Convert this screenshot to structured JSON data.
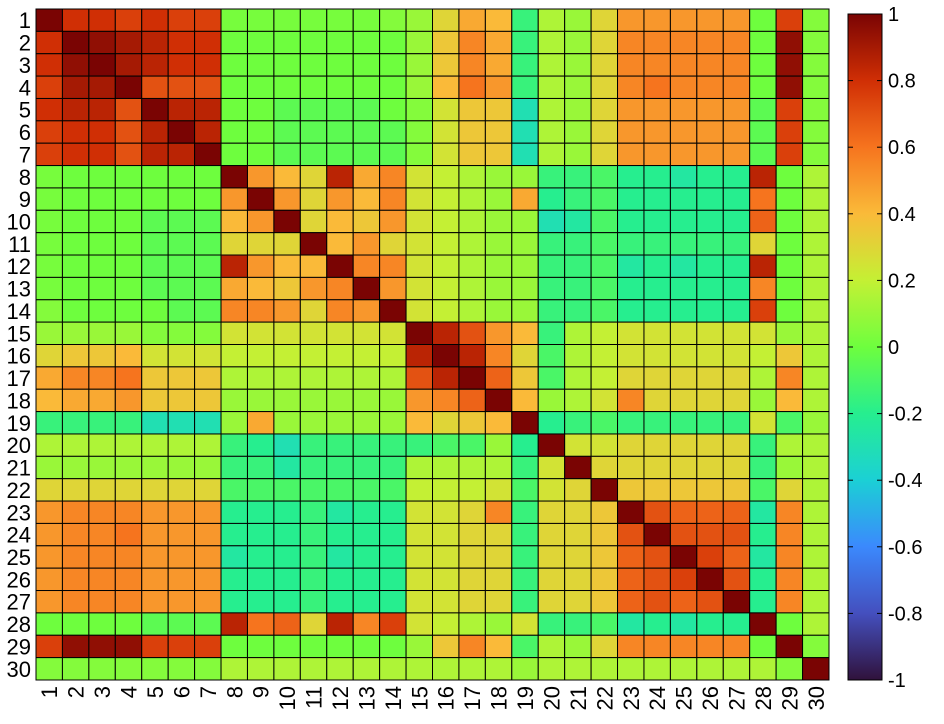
{
  "chart_data": {
    "type": "heatmap",
    "title": "",
    "xlabel": "",
    "ylabel": "",
    "x_labels": [
      "1",
      "2",
      "3",
      "4",
      "5",
      "6",
      "7",
      "8",
      "9",
      "10",
      "11",
      "12",
      "13",
      "14",
      "15",
      "16",
      "17",
      "18",
      "19",
      "20",
      "21",
      "22",
      "23",
      "24",
      "25",
      "26",
      "27",
      "28",
      "29",
      "30"
    ],
    "y_labels": [
      "1",
      "2",
      "3",
      "4",
      "5",
      "6",
      "7",
      "8",
      "9",
      "10",
      "11",
      "12",
      "13",
      "14",
      "15",
      "16",
      "17",
      "18",
      "19",
      "20",
      "21",
      "22",
      "23",
      "24",
      "25",
      "26",
      "27",
      "28",
      "29",
      "30"
    ],
    "value_range": [
      -1,
      1
    ],
    "colormap": "turbo",
    "colorbar": {
      "ticks": [
        1,
        0.8,
        0.6,
        0.4,
        0.2,
        0,
        -0.2,
        -0.4,
        -0.6,
        -0.8,
        -1
      ],
      "tick_labels": [
        "1",
        "0.8",
        "0.6",
        "0.4",
        "0.2",
        "0",
        "-0.2",
        "-0.4",
        "-0.6",
        "-0.8",
        "-1"
      ]
    },
    "values": [
      [
        1.0,
        0.8,
        0.8,
        0.75,
        0.8,
        0.75,
        0.75,
        0.02,
        0.02,
        0.02,
        0.02,
        0.02,
        0.02,
        0.05,
        0.1,
        0.3,
        0.45,
        0.4,
        -0.15,
        0.15,
        0.1,
        0.3,
        0.5,
        0.5,
        0.5,
        0.5,
        0.5,
        0.0,
        0.75,
        0.05
      ],
      [
        0.8,
        1.0,
        0.95,
        0.9,
        0.85,
        0.8,
        0.8,
        0.0,
        0.0,
        0.0,
        0.0,
        0.0,
        0.0,
        0.0,
        0.1,
        0.35,
        0.55,
        0.45,
        -0.15,
        0.15,
        0.1,
        0.3,
        0.55,
        0.55,
        0.55,
        0.55,
        0.55,
        0.0,
        0.95,
        0.05
      ],
      [
        0.8,
        0.95,
        1.0,
        0.9,
        0.85,
        0.8,
        0.8,
        0.0,
        0.0,
        0.0,
        0.0,
        0.0,
        0.0,
        0.0,
        0.1,
        0.35,
        0.55,
        0.45,
        -0.15,
        0.15,
        0.1,
        0.3,
        0.55,
        0.55,
        0.55,
        0.55,
        0.55,
        0.0,
        0.95,
        0.05
      ],
      [
        0.75,
        0.9,
        0.9,
        1.0,
        0.7,
        0.7,
        0.7,
        0.0,
        0.0,
        0.0,
        0.0,
        0.0,
        0.0,
        0.0,
        0.1,
        0.4,
        0.6,
        0.5,
        -0.15,
        0.15,
        0.1,
        0.3,
        0.55,
        0.6,
        0.55,
        0.55,
        0.55,
        0.0,
        0.95,
        0.05
      ],
      [
        0.8,
        0.85,
        0.85,
        0.7,
        1.0,
        0.85,
        0.85,
        0.0,
        0.0,
        -0.05,
        -0.05,
        -0.05,
        -0.05,
        0.0,
        0.05,
        0.25,
        0.35,
        0.35,
        -0.3,
        0.15,
        0.1,
        0.3,
        0.5,
        0.5,
        0.5,
        0.5,
        0.5,
        -0.05,
        0.75,
        0.05
      ],
      [
        0.75,
        0.8,
        0.8,
        0.7,
        0.85,
        1.0,
        0.85,
        0.0,
        0.0,
        -0.05,
        -0.05,
        -0.05,
        -0.05,
        -0.05,
        0.05,
        0.25,
        0.35,
        0.35,
        -0.3,
        0.15,
        0.1,
        0.3,
        0.5,
        0.5,
        0.5,
        0.5,
        0.5,
        -0.05,
        0.75,
        0.05
      ],
      [
        0.75,
        0.8,
        0.8,
        0.7,
        0.85,
        0.85,
        1.0,
        0.0,
        0.0,
        -0.05,
        -0.05,
        -0.05,
        -0.05,
        -0.05,
        0.05,
        0.25,
        0.35,
        0.35,
        -0.3,
        0.15,
        0.1,
        0.3,
        0.5,
        0.5,
        0.5,
        0.5,
        0.5,
        -0.05,
        0.75,
        0.05
      ],
      [
        0.02,
        0.0,
        0.0,
        0.0,
        0.0,
        0.0,
        0.0,
        1.0,
        0.5,
        0.4,
        0.3,
        0.85,
        0.45,
        0.55,
        0.25,
        0.2,
        0.15,
        0.1,
        0.1,
        -0.15,
        -0.15,
        -0.1,
        -0.2,
        -0.2,
        -0.25,
        -0.2,
        -0.2,
        0.85,
        0.0,
        0.15
      ],
      [
        0.02,
        0.0,
        0.0,
        0.0,
        0.0,
        0.0,
        0.0,
        0.5,
        1.0,
        0.5,
        0.3,
        0.5,
        0.4,
        0.55,
        0.25,
        0.2,
        0.15,
        0.1,
        0.45,
        -0.2,
        -0.15,
        -0.1,
        -0.2,
        -0.2,
        -0.2,
        -0.2,
        -0.2,
        0.6,
        0.0,
        0.15
      ],
      [
        0.02,
        0.0,
        0.0,
        0.0,
        -0.05,
        -0.05,
        -0.05,
        0.4,
        0.5,
        1.0,
        0.3,
        0.4,
        0.35,
        0.5,
        0.25,
        0.2,
        0.15,
        0.1,
        0.1,
        -0.3,
        -0.25,
        -0.1,
        -0.2,
        -0.2,
        -0.2,
        -0.2,
        -0.2,
        0.65,
        0.0,
        0.15
      ],
      [
        0.02,
        0.0,
        0.0,
        0.0,
        -0.05,
        -0.05,
        -0.05,
        0.3,
        0.3,
        0.3,
        1.0,
        0.4,
        0.5,
        0.3,
        0.25,
        0.2,
        0.15,
        0.1,
        0.1,
        -0.15,
        -0.15,
        -0.1,
        -0.15,
        -0.15,
        -0.15,
        -0.15,
        -0.15,
        0.3,
        0.0,
        0.15
      ],
      [
        0.02,
        0.0,
        0.0,
        0.0,
        -0.05,
        -0.05,
        -0.05,
        0.85,
        0.5,
        0.4,
        0.4,
        1.0,
        0.55,
        0.55,
        0.25,
        0.2,
        0.15,
        0.1,
        0.1,
        -0.15,
        -0.15,
        -0.1,
        -0.25,
        -0.2,
        -0.25,
        -0.2,
        -0.2,
        0.85,
        0.0,
        0.15
      ],
      [
        0.02,
        0.0,
        0.0,
        0.0,
        -0.05,
        -0.05,
        -0.05,
        0.45,
        0.4,
        0.35,
        0.5,
        0.55,
        1.0,
        0.5,
        0.25,
        0.2,
        0.15,
        0.1,
        0.1,
        -0.15,
        -0.15,
        -0.1,
        -0.2,
        -0.2,
        -0.2,
        -0.2,
        -0.2,
        0.55,
        0.0,
        0.15
      ],
      [
        0.05,
        0.0,
        0.0,
        0.0,
        0.0,
        -0.05,
        -0.05,
        0.55,
        0.55,
        0.5,
        0.3,
        0.55,
        0.5,
        1.0,
        0.25,
        0.2,
        0.15,
        0.1,
        0.1,
        -0.15,
        -0.15,
        -0.1,
        -0.2,
        -0.2,
        -0.2,
        -0.2,
        -0.2,
        0.75,
        0.0,
        0.15
      ],
      [
        0.1,
        0.1,
        0.1,
        0.1,
        0.05,
        0.05,
        0.05,
        0.25,
        0.25,
        0.25,
        0.25,
        0.25,
        0.25,
        0.25,
        1.0,
        0.85,
        0.7,
        0.5,
        0.4,
        -0.15,
        0.15,
        0.2,
        0.25,
        0.25,
        0.25,
        0.25,
        0.25,
        0.25,
        0.1,
        0.15
      ],
      [
        0.3,
        0.35,
        0.35,
        0.4,
        0.25,
        0.25,
        0.25,
        0.2,
        0.2,
        0.2,
        0.2,
        0.2,
        0.2,
        0.2,
        0.85,
        1.0,
        0.85,
        0.55,
        0.3,
        -0.1,
        0.15,
        0.2,
        0.25,
        0.25,
        0.25,
        0.25,
        0.25,
        0.2,
        0.35,
        0.15
      ],
      [
        0.45,
        0.55,
        0.55,
        0.6,
        0.35,
        0.35,
        0.35,
        0.15,
        0.15,
        0.15,
        0.15,
        0.15,
        0.15,
        0.15,
        0.7,
        0.85,
        1.0,
        0.65,
        0.35,
        -0.1,
        0.15,
        0.2,
        0.3,
        0.3,
        0.3,
        0.3,
        0.3,
        0.15,
        0.55,
        0.15
      ],
      [
        0.4,
        0.45,
        0.45,
        0.5,
        0.35,
        0.35,
        0.35,
        0.1,
        0.1,
        0.1,
        0.1,
        0.1,
        0.1,
        0.1,
        0.5,
        0.55,
        0.65,
        1.0,
        0.4,
        0.1,
        0.15,
        0.25,
        0.55,
        0.3,
        0.3,
        0.3,
        0.3,
        0.1,
        0.4,
        0.15
      ],
      [
        -0.15,
        -0.15,
        -0.15,
        -0.15,
        -0.3,
        -0.3,
        -0.3,
        0.1,
        0.45,
        0.1,
        0.1,
        0.1,
        0.1,
        0.1,
        0.4,
        0.3,
        0.35,
        0.4,
        1.0,
        -0.2,
        -0.15,
        -0.1,
        -0.15,
        -0.15,
        -0.15,
        -0.15,
        -0.15,
        0.25,
        -0.1,
        0.1
      ],
      [
        0.15,
        0.15,
        0.15,
        0.15,
        0.15,
        0.15,
        0.15,
        -0.15,
        -0.2,
        -0.3,
        -0.15,
        -0.15,
        -0.15,
        -0.15,
        -0.15,
        -0.1,
        -0.1,
        0.1,
        -0.2,
        1.0,
        0.25,
        0.25,
        0.3,
        0.3,
        0.3,
        0.3,
        0.3,
        -0.15,
        0.15,
        0.15
      ],
      [
        0.1,
        0.1,
        0.1,
        0.1,
        0.1,
        0.1,
        0.1,
        -0.15,
        -0.15,
        -0.25,
        -0.15,
        -0.15,
        -0.15,
        -0.15,
        0.15,
        0.15,
        0.15,
        0.15,
        -0.15,
        0.25,
        1.0,
        0.3,
        0.3,
        0.3,
        0.3,
        0.3,
        0.3,
        -0.15,
        0.1,
        0.15
      ],
      [
        0.3,
        0.3,
        0.3,
        0.3,
        0.3,
        0.3,
        0.3,
        -0.1,
        -0.1,
        -0.1,
        -0.1,
        -0.1,
        -0.1,
        -0.1,
        0.2,
        0.2,
        0.2,
        0.25,
        -0.1,
        0.25,
        0.3,
        1.0,
        0.35,
        0.35,
        0.35,
        0.35,
        0.35,
        -0.1,
        0.3,
        0.15
      ],
      [
        0.5,
        0.55,
        0.55,
        0.55,
        0.5,
        0.5,
        0.5,
        -0.2,
        -0.2,
        -0.2,
        -0.15,
        -0.25,
        -0.2,
        -0.2,
        0.25,
        0.25,
        0.3,
        0.55,
        -0.15,
        0.3,
        0.3,
        0.35,
        1.0,
        0.7,
        0.65,
        0.65,
        0.65,
        -0.25,
        0.55,
        0.15
      ],
      [
        0.5,
        0.55,
        0.55,
        0.6,
        0.5,
        0.5,
        0.5,
        -0.2,
        -0.2,
        -0.2,
        -0.15,
        -0.2,
        -0.2,
        -0.2,
        0.25,
        0.25,
        0.3,
        0.3,
        -0.15,
        0.3,
        0.3,
        0.35,
        0.7,
        1.0,
        0.7,
        0.7,
        0.7,
        -0.2,
        0.55,
        0.15
      ],
      [
        0.5,
        0.55,
        0.55,
        0.55,
        0.5,
        0.5,
        0.5,
        -0.25,
        -0.2,
        -0.2,
        -0.15,
        -0.25,
        -0.2,
        -0.2,
        0.25,
        0.25,
        0.3,
        0.3,
        -0.15,
        0.3,
        0.3,
        0.35,
        0.65,
        0.7,
        1.0,
        0.75,
        0.65,
        -0.25,
        0.55,
        0.15
      ],
      [
        0.5,
        0.55,
        0.55,
        0.55,
        0.5,
        0.5,
        0.5,
        -0.2,
        -0.2,
        -0.2,
        -0.15,
        -0.2,
        -0.2,
        -0.2,
        0.25,
        0.25,
        0.3,
        0.3,
        -0.15,
        0.3,
        0.3,
        0.35,
        0.65,
        0.7,
        0.75,
        1.0,
        0.7,
        -0.2,
        0.55,
        0.15
      ],
      [
        0.5,
        0.55,
        0.55,
        0.55,
        0.5,
        0.5,
        0.5,
        -0.2,
        -0.2,
        -0.2,
        -0.15,
        -0.2,
        -0.2,
        -0.2,
        0.25,
        0.25,
        0.3,
        0.3,
        -0.15,
        0.3,
        0.3,
        0.35,
        0.65,
        0.7,
        0.65,
        0.7,
        1.0,
        -0.2,
        0.55,
        0.15
      ],
      [
        0.0,
        0.0,
        0.0,
        0.0,
        -0.05,
        -0.05,
        -0.05,
        0.85,
        0.6,
        0.65,
        0.3,
        0.85,
        0.55,
        0.75,
        0.25,
        0.2,
        0.15,
        0.1,
        0.25,
        -0.15,
        -0.15,
        -0.1,
        -0.25,
        -0.2,
        -0.25,
        -0.2,
        -0.2,
        1.0,
        0.0,
        0.15
      ],
      [
        0.75,
        0.95,
        0.95,
        0.95,
        0.75,
        0.75,
        0.75,
        0.0,
        0.0,
        0.0,
        0.0,
        0.0,
        0.0,
        0.0,
        0.1,
        0.35,
        0.55,
        0.4,
        -0.1,
        0.15,
        0.1,
        0.3,
        0.55,
        0.55,
        0.55,
        0.55,
        0.55,
        0.0,
        1.0,
        0.05
      ],
      [
        0.05,
        0.05,
        0.05,
        0.05,
        0.05,
        0.05,
        0.05,
        0.15,
        0.15,
        0.15,
        0.15,
        0.15,
        0.15,
        0.15,
        0.15,
        0.15,
        0.15,
        0.15,
        0.1,
        0.15,
        0.15,
        0.15,
        0.15,
        0.15,
        0.15,
        0.15,
        0.15,
        0.15,
        0.05,
        1.0
      ]
    ]
  }
}
